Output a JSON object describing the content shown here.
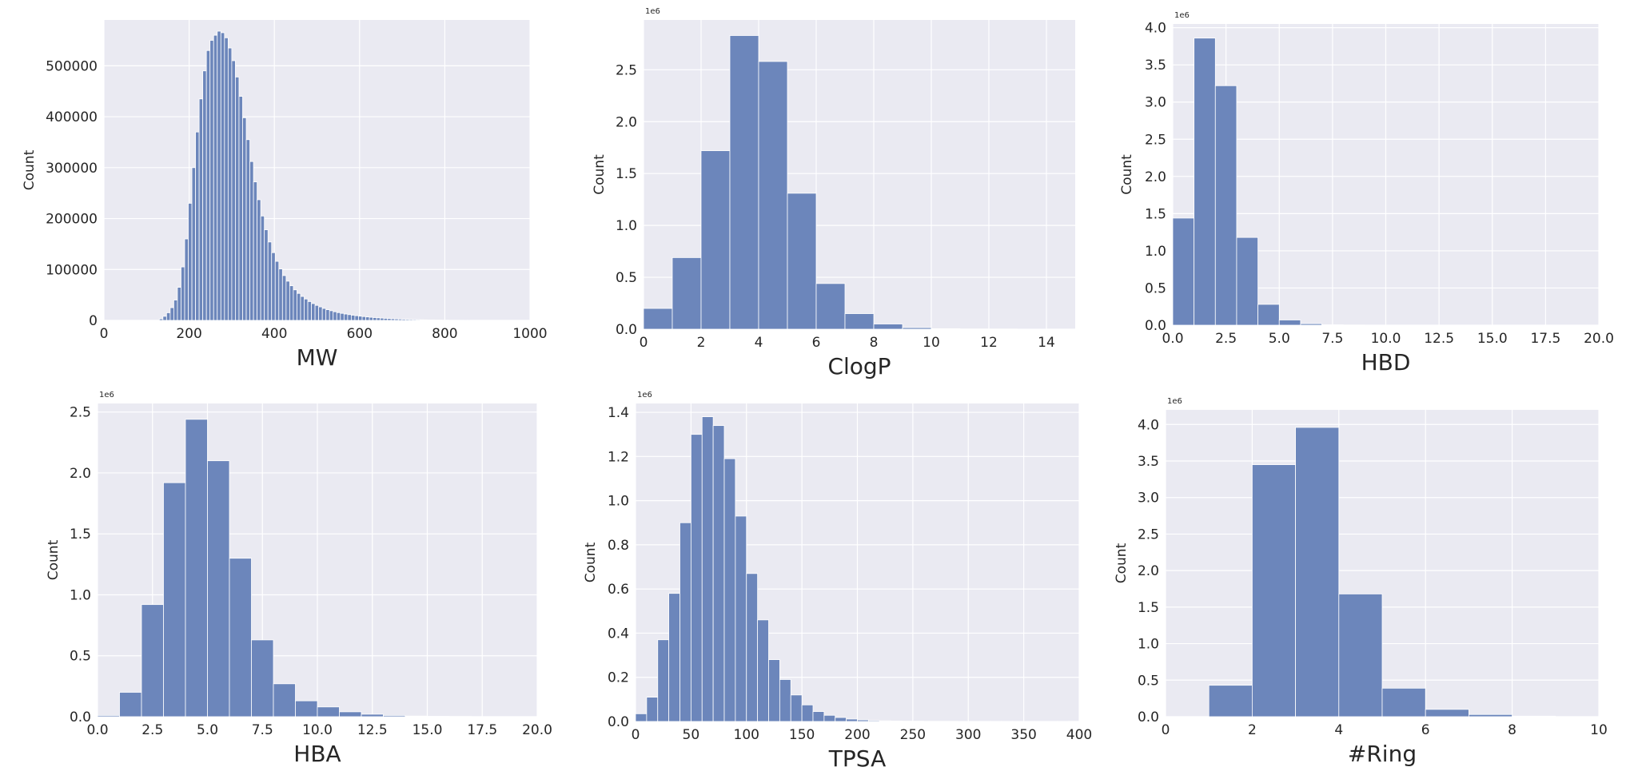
{
  "colors": {
    "bar": "#6c86bb",
    "bar_edge": "#ffffff",
    "panel": "#eaeaf2",
    "grid": "#ffffff",
    "text": "#262626"
  },
  "chart_data": [
    {
      "type": "bar",
      "xlabel": "MW",
      "ylabel": "Count",
      "offset_text": "",
      "xlim": [
        0,
        1000
      ],
      "ylim": [
        0,
        590000
      ],
      "xticks": [
        0,
        200,
        400,
        600,
        800,
        1000
      ],
      "xtick_labels": [
        "0",
        "200",
        "400",
        "600",
        "800",
        "1000"
      ],
      "yticks": [
        0,
        100000,
        200000,
        300000,
        400000,
        500000
      ],
      "ytick_labels": [
        "0",
        "100000",
        "200000",
        "300000",
        "400000",
        "500000"
      ],
      "bin_start": 130,
      "bin_width": 8.5,
      "values": [
        3000,
        8000,
        15000,
        25000,
        40000,
        65000,
        105000,
        160000,
        230000,
        300000,
        370000,
        435000,
        490000,
        530000,
        550000,
        560000,
        568000,
        565000,
        555000,
        535000,
        510000,
        478000,
        440000,
        398000,
        355000,
        312000,
        272000,
        237000,
        205000,
        178000,
        154000,
        133000,
        116000,
        101000,
        88000,
        77000,
        68000,
        60000,
        53000,
        47000,
        42000,
        37000,
        33000,
        29500,
        26500,
        23500,
        21000,
        19000,
        17000,
        15300,
        13800,
        12500,
        11300,
        10200,
        9200,
        8300,
        7500,
        6800,
        6100,
        5500,
        5000,
        4500,
        4000,
        3600,
        3200,
        2900,
        2600,
        2300,
        2000,
        1800,
        1600,
        1400,
        1200,
        1050,
        900,
        780,
        650,
        550,
        450,
        380,
        300,
        230,
        170,
        120,
        80,
        50,
        30,
        15
      ]
    },
    {
      "type": "bar",
      "xlabel": "ClogP",
      "ylabel": "Count",
      "offset_text": "1e6",
      "xlim": [
        0,
        15
      ],
      "ylim": [
        0,
        2.98
      ],
      "xticks": [
        0,
        2,
        4,
        6,
        8,
        10,
        12,
        14
      ],
      "xtick_labels": [
        "0",
        "2",
        "4",
        "6",
        "8",
        "10",
        "12",
        "14"
      ],
      "yticks": [
        0,
        0.5,
        1.0,
        1.5,
        2.0,
        2.5
      ],
      "ytick_labels": [
        "0.0",
        "0.5",
        "1.0",
        "1.5",
        "2.0",
        "2.5"
      ],
      "bin_start": 0,
      "bin_width": 1.0,
      "values": [
        0.2,
        0.69,
        1.72,
        2.83,
        2.58,
        1.31,
        0.44,
        0.15,
        0.05,
        0.015,
        0.005,
        0.002,
        0.001,
        0.0005
      ]
    },
    {
      "type": "bar",
      "xlabel": "HBD",
      "ylabel": "Count",
      "offset_text": "1e6",
      "xlim": [
        0,
        20
      ],
      "ylim": [
        0,
        4.05
      ],
      "xticks": [
        0,
        2.5,
        5,
        7.5,
        10,
        12.5,
        15,
        17.5,
        20
      ],
      "xtick_labels": [
        "0.0",
        "2.5",
        "5.0",
        "7.5",
        "10.0",
        "12.5",
        "15.0",
        "17.5",
        "20.0"
      ],
      "yticks": [
        0,
        0.5,
        1.0,
        1.5,
        2.0,
        2.5,
        3.0,
        3.5,
        4.0
      ],
      "ytick_labels": [
        "0.0",
        "0.5",
        "1.0",
        "1.5",
        "2.0",
        "2.5",
        "3.0",
        "3.5",
        "4.0"
      ],
      "bin_start": 0,
      "bin_width": 1.0,
      "values": [
        1.44,
        3.86,
        3.22,
        1.18,
        0.28,
        0.07,
        0.02,
        0.005,
        0.002,
        0.001
      ]
    },
    {
      "type": "bar",
      "xlabel": "HBA",
      "ylabel": "Count",
      "offset_text": "1e6",
      "xlim": [
        0,
        20
      ],
      "ylim": [
        0,
        2.57
      ],
      "xticks": [
        0,
        2.5,
        5,
        7.5,
        10,
        12.5,
        15,
        17.5,
        20
      ],
      "xtick_labels": [
        "0.0",
        "2.5",
        "5.0",
        "7.5",
        "10.0",
        "12.5",
        "15.0",
        "17.5",
        "20.0"
      ],
      "yticks": [
        0,
        0.5,
        1.0,
        1.5,
        2.0,
        2.5
      ],
      "ytick_labels": [
        "0.0",
        "0.5",
        "1.0",
        "1.5",
        "2.0",
        "2.5"
      ],
      "bin_start": 0,
      "bin_width": 1.0,
      "values": [
        0.01,
        0.2,
        0.92,
        1.92,
        2.44,
        2.1,
        1.3,
        0.63,
        0.27,
        0.13,
        0.08,
        0.04,
        0.02,
        0.01,
        0.005,
        0.003,
        0.002,
        0.001,
        0.001
      ]
    },
    {
      "type": "bar",
      "xlabel": "TPSA",
      "ylabel": "Count",
      "offset_text": "1e6",
      "xlim": [
        0,
        400
      ],
      "ylim": [
        0,
        1.44
      ],
      "xticks": [
        0,
        50,
        100,
        150,
        200,
        250,
        300,
        350,
        400
      ],
      "xtick_labels": [
        "0",
        "50",
        "100",
        "150",
        "200",
        "250",
        "300",
        "350",
        "400"
      ],
      "yticks": [
        0,
        0.2,
        0.4,
        0.6,
        0.8,
        1.0,
        1.2,
        1.4
      ],
      "ytick_labels": [
        "0.0",
        "0.2",
        "0.4",
        "0.6",
        "0.8",
        "1.0",
        "1.2",
        "1.4"
      ],
      "bin_start": 0,
      "bin_width": 10,
      "values": [
        0.035,
        0.11,
        0.37,
        0.58,
        0.9,
        1.3,
        1.38,
        1.34,
        1.19,
        0.93,
        0.67,
        0.46,
        0.28,
        0.19,
        0.12,
        0.075,
        0.045,
        0.028,
        0.018,
        0.011,
        0.007,
        0.004,
        0.003,
        0.002,
        0.001,
        0.001,
        0.0005,
        0.0005,
        0.0003,
        0.0002,
        0.0002,
        0.0001,
        0.0001,
        0.0001,
        0.0001,
        0.0001,
        0.0001,
        0.0001,
        0.0001
      ]
    },
    {
      "type": "bar",
      "xlabel": "#Ring",
      "ylabel": "Count",
      "offset_text": "1e6",
      "xlim": [
        0,
        10
      ],
      "ylim": [
        0,
        4.2
      ],
      "xticks": [
        0,
        2,
        4,
        6,
        8,
        10
      ],
      "xtick_labels": [
        "0",
        "2",
        "4",
        "6",
        "8",
        "10"
      ],
      "yticks": [
        0,
        0.5,
        1.0,
        1.5,
        2.0,
        2.5,
        3.0,
        3.5,
        4.0
      ],
      "ytick_labels": [
        "0.0",
        "0.5",
        "1.0",
        "1.5",
        "2.0",
        "2.5",
        "3.0",
        "3.5",
        "4.0"
      ],
      "bin_start": 0,
      "bin_width": 1.0,
      "values": [
        0.0,
        0.43,
        3.45,
        3.96,
        1.68,
        0.39,
        0.1,
        0.03,
        0.008,
        0.002
      ]
    }
  ]
}
